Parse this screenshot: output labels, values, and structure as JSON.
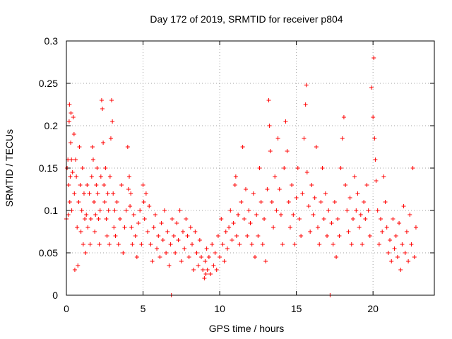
{
  "chart_data": {
    "type": "scatter",
    "title": "Day 172 of 2019, SRMTID for receiver p804",
    "xlabel": "GPS time / hours",
    "ylabel": "SRMTID / TECUs",
    "xlim": [
      0,
      24
    ],
    "ylim": [
      0,
      0.3
    ],
    "x_ticks": [
      0,
      5,
      10,
      15,
      20
    ],
    "y_ticks": [
      0,
      0.05,
      0.1,
      0.15,
      0.2,
      0.25,
      0.3
    ],
    "x_tick_labels": [
      "0",
      "5",
      "10",
      "15",
      "20"
    ],
    "y_tick_labels": [
      "0",
      "0.05",
      "0.1",
      "0.15",
      "0.2",
      "0.25",
      "0.3"
    ],
    "grid": true,
    "marker": "+",
    "color": "#ff0000",
    "series": [
      {
        "name": "SRMTID",
        "points": [
          [
            0.0,
            0.09
          ],
          [
            0.05,
            0.15
          ],
          [
            0.1,
            0.16
          ],
          [
            0.12,
            0.095
          ],
          [
            0.15,
            0.13
          ],
          [
            0.18,
            0.205
          ],
          [
            0.2,
            0.225
          ],
          [
            0.22,
            0.11
          ],
          [
            0.25,
            0.14
          ],
          [
            0.28,
            0.18
          ],
          [
            0.3,
            0.215
          ],
          [
            0.33,
            0.16
          ],
          [
            0.35,
            0.1
          ],
          [
            0.4,
            0.145
          ],
          [
            0.45,
            0.21
          ],
          [
            0.5,
            0.19
          ],
          [
            0.52,
            0.12
          ],
          [
            0.55,
            0.03
          ],
          [
            0.6,
            0.16
          ],
          [
            0.65,
            0.14
          ],
          [
            0.7,
            0.08
          ],
          [
            0.75,
            0.035
          ],
          [
            0.8,
            0.11
          ],
          [
            0.85,
            0.175
          ],
          [
            0.9,
            0.13
          ],
          [
            0.95,
            0.075
          ],
          [
            1.0,
            0.1
          ],
          [
            1.05,
            0.15
          ],
          [
            1.1,
            0.06
          ],
          [
            1.15,
            0.12
          ],
          [
            1.2,
            0.09
          ],
          [
            1.25,
            0.05
          ],
          [
            1.3,
            0.095
          ],
          [
            1.35,
            0.13
          ],
          [
            1.4,
            0.08
          ],
          [
            1.5,
            0.12
          ],
          [
            1.55,
            0.06
          ],
          [
            1.6,
            0.09
          ],
          [
            1.65,
            0.14
          ],
          [
            1.7,
            0.175
          ],
          [
            1.75,
            0.16
          ],
          [
            1.8,
            0.11
          ],
          [
            1.85,
            0.075
          ],
          [
            1.9,
            0.095
          ],
          [
            1.95,
            0.13
          ],
          [
            2.0,
            0.15
          ],
          [
            2.05,
            0.12
          ],
          [
            2.1,
            0.09
          ],
          [
            2.15,
            0.06
          ],
          [
            2.2,
            0.1
          ],
          [
            2.25,
            0.14
          ],
          [
            2.3,
            0.23
          ],
          [
            2.35,
            0.22
          ],
          [
            2.4,
            0.18
          ],
          [
            2.45,
            0.13
          ],
          [
            2.5,
            0.11
          ],
          [
            2.55,
            0.15
          ],
          [
            2.6,
            0.09
          ],
          [
            2.65,
            0.07
          ],
          [
            2.7,
            0.12
          ],
          [
            2.75,
            0.1
          ],
          [
            2.8,
            0.06
          ],
          [
            2.85,
            0.14
          ],
          [
            2.9,
            0.185
          ],
          [
            2.95,
            0.23
          ],
          [
            3.0,
            0.205
          ],
          [
            3.05,
            0.12
          ],
          [
            3.1,
            0.08
          ],
          [
            3.15,
            0.1
          ],
          [
            3.2,
            0.07
          ],
          [
            3.3,
            0.11
          ],
          [
            3.4,
            0.06
          ],
          [
            3.5,
            0.09
          ],
          [
            3.6,
            0.13
          ],
          [
            3.7,
            0.05
          ],
          [
            3.8,
            0.08
          ],
          [
            3.9,
            0.1
          ],
          [
            4.0,
            0.175
          ],
          [
            4.05,
            0.125
          ],
          [
            4.1,
            0.14
          ],
          [
            4.15,
            0.105
          ],
          [
            4.2,
            0.12
          ],
          [
            4.25,
            0.08
          ],
          [
            4.3,
            0.06
          ],
          [
            4.4,
            0.095
          ],
          [
            4.5,
            0.07
          ],
          [
            4.6,
            0.045
          ],
          [
            4.7,
            0.085
          ],
          [
            4.8,
            0.1
          ],
          [
            4.9,
            0.06
          ],
          [
            5.0,
            0.13
          ],
          [
            5.05,
            0.11
          ],
          [
            5.1,
            0.09
          ],
          [
            5.2,
            0.12
          ],
          [
            5.3,
            0.075
          ],
          [
            5.4,
            0.105
          ],
          [
            5.5,
            0.06
          ],
          [
            5.6,
            0.04
          ],
          [
            5.7,
            0.08
          ],
          [
            5.8,
            0.095
          ],
          [
            5.9,
            0.055
          ],
          [
            6.0,
            0.07
          ],
          [
            6.1,
            0.045
          ],
          [
            6.2,
            0.085
          ],
          [
            6.3,
            0.065
          ],
          [
            6.4,
            0.1
          ],
          [
            6.5,
            0.05
          ],
          [
            6.6,
            0.075
          ],
          [
            6.7,
            0.035
          ],
          [
            6.8,
            0.06
          ],
          [
            6.85,
            0.0
          ],
          [
            6.9,
            0.09
          ],
          [
            7.0,
            0.07
          ],
          [
            7.1,
            0.05
          ],
          [
            7.2,
            0.085
          ],
          [
            7.3,
            0.065
          ],
          [
            7.4,
            0.1
          ],
          [
            7.5,
            0.04
          ],
          [
            7.6,
            0.075
          ],
          [
            7.7,
            0.055
          ],
          [
            7.8,
            0.09
          ],
          [
            7.9,
            0.07
          ],
          [
            8.0,
            0.045
          ],
          [
            8.1,
            0.08
          ],
          [
            8.2,
            0.06
          ],
          [
            8.3,
            0.03
          ],
          [
            8.4,
            0.075
          ],
          [
            8.5,
            0.05
          ],
          [
            8.6,
            0.035
          ],
          [
            8.7,
            0.065
          ],
          [
            8.8,
            0.045
          ],
          [
            8.9,
            0.03
          ],
          [
            9.0,
            0.02
          ],
          [
            9.05,
            0.04
          ],
          [
            9.1,
            0.025
          ],
          [
            9.15,
            0.055
          ],
          [
            9.2,
            0.03
          ],
          [
            9.3,
            0.045
          ],
          [
            9.4,
            0.025
          ],
          [
            9.5,
            0.06
          ],
          [
            9.6,
            0.035
          ],
          [
            9.7,
            0.05
          ],
          [
            9.8,
            0.03
          ],
          [
            9.9,
            0.07
          ],
          [
            10.0,
            0.045
          ],
          [
            10.1,
            0.09
          ],
          [
            10.2,
            0.06
          ],
          [
            10.3,
            0.04
          ],
          [
            10.4,
            0.075
          ],
          [
            10.5,
            0.055
          ],
          [
            10.6,
            0.08
          ],
          [
            10.7,
            0.1
          ],
          [
            10.8,
            0.065
          ],
          [
            10.9,
            0.085
          ],
          [
            11.0,
            0.13
          ],
          [
            11.05,
            0.14
          ],
          [
            11.1,
            0.07
          ],
          [
            11.2,
            0.095
          ],
          [
            11.3,
            0.06
          ],
          [
            11.4,
            0.11
          ],
          [
            11.5,
            0.175
          ],
          [
            11.6,
            0.09
          ],
          [
            11.7,
            0.125
          ],
          [
            11.8,
            0.07
          ],
          [
            11.9,
            0.1
          ],
          [
            12.0,
            0.085
          ],
          [
            12.1,
            0.06
          ],
          [
            12.2,
            0.12
          ],
          [
            12.3,
            0.045
          ],
          [
            12.4,
            0.095
          ],
          [
            12.5,
            0.07
          ],
          [
            12.6,
            0.15
          ],
          [
            12.7,
            0.11
          ],
          [
            12.8,
            0.06
          ],
          [
            12.9,
            0.09
          ],
          [
            13.0,
            0.04
          ],
          [
            13.1,
            0.125
          ],
          [
            13.2,
            0.23
          ],
          [
            13.25,
            0.2
          ],
          [
            13.3,
            0.17
          ],
          [
            13.4,
            0.11
          ],
          [
            13.5,
            0.08
          ],
          [
            13.6,
            0.14
          ],
          [
            13.7,
            0.1
          ],
          [
            13.8,
            0.185
          ],
          [
            13.9,
            0.125
          ],
          [
            14.0,
            0.095
          ],
          [
            14.1,
            0.06
          ],
          [
            14.2,
            0.15
          ],
          [
            14.3,
            0.205
          ],
          [
            14.4,
            0.17
          ],
          [
            14.5,
            0.11
          ],
          [
            14.6,
            0.08
          ],
          [
            14.7,
            0.13
          ],
          [
            14.8,
            0.095
          ],
          [
            14.9,
            0.06
          ],
          [
            15.0,
            0.115
          ],
          [
            15.1,
            0.15
          ],
          [
            15.2,
            0.09
          ],
          [
            15.3,
            0.07
          ],
          [
            15.4,
            0.12
          ],
          [
            15.5,
            0.185
          ],
          [
            15.6,
            0.225
          ],
          [
            15.65,
            0.248
          ],
          [
            15.7,
            0.145
          ],
          [
            15.8,
            0.105
          ],
          [
            15.9,
            0.075
          ],
          [
            16.0,
            0.13
          ],
          [
            16.1,
            0.095
          ],
          [
            16.2,
            0.115
          ],
          [
            16.3,
            0.175
          ],
          [
            16.4,
            0.08
          ],
          [
            16.5,
            0.06
          ],
          [
            16.6,
            0.11
          ],
          [
            16.7,
            0.15
          ],
          [
            16.8,
            0.09
          ],
          [
            16.9,
            0.12
          ],
          [
            17.0,
            0.07
          ],
          [
            17.1,
            0.1
          ],
          [
            17.2,
            0.0
          ],
          [
            17.3,
            0.085
          ],
          [
            17.4,
            0.06
          ],
          [
            17.5,
            0.11
          ],
          [
            17.6,
            0.045
          ],
          [
            17.7,
            0.09
          ],
          [
            17.8,
            0.07
          ],
          [
            17.9,
            0.15
          ],
          [
            18.0,
            0.185
          ],
          [
            18.1,
            0.21
          ],
          [
            18.2,
            0.13
          ],
          [
            18.3,
            0.1
          ],
          [
            18.4,
            0.075
          ],
          [
            18.5,
            0.115
          ],
          [
            18.6,
            0.06
          ],
          [
            18.7,
            0.09
          ],
          [
            18.8,
            0.14
          ],
          [
            18.9,
            0.1
          ],
          [
            19.0,
            0.12
          ],
          [
            19.1,
            0.08
          ],
          [
            19.2,
            0.095
          ],
          [
            19.3,
            0.06
          ],
          [
            19.4,
            0.11
          ],
          [
            19.5,
            0.09
          ],
          [
            19.6,
            0.13
          ],
          [
            19.7,
            0.1
          ],
          [
            19.8,
            0.07
          ],
          [
            19.9,
            0.245
          ],
          [
            20.0,
            0.21
          ],
          [
            20.05,
            0.28
          ],
          [
            20.1,
            0.185
          ],
          [
            20.15,
            0.16
          ],
          [
            20.2,
            0.135
          ],
          [
            20.3,
            0.1
          ],
          [
            20.4,
            0.06
          ],
          [
            20.5,
            0.09
          ],
          [
            20.6,
            0.075
          ],
          [
            20.7,
            0.14
          ],
          [
            20.8,
            0.11
          ],
          [
            20.9,
            0.08
          ],
          [
            21.0,
            0.05
          ],
          [
            21.1,
            0.065
          ],
          [
            21.2,
            0.04
          ],
          [
            21.3,
            0.09
          ],
          [
            21.4,
            0.055
          ],
          [
            21.5,
            0.07
          ],
          [
            21.6,
            0.045
          ],
          [
            21.7,
            0.085
          ],
          [
            21.8,
            0.03
          ],
          [
            21.9,
            0.06
          ],
          [
            22.0,
            0.105
          ],
          [
            22.1,
            0.05
          ],
          [
            22.2,
            0.075
          ],
          [
            22.3,
            0.04
          ],
          [
            22.4,
            0.095
          ],
          [
            22.5,
            0.06
          ],
          [
            22.6,
            0.15
          ],
          [
            22.7,
            0.045
          ],
          [
            22.8,
            0.08
          ]
        ]
      }
    ]
  }
}
